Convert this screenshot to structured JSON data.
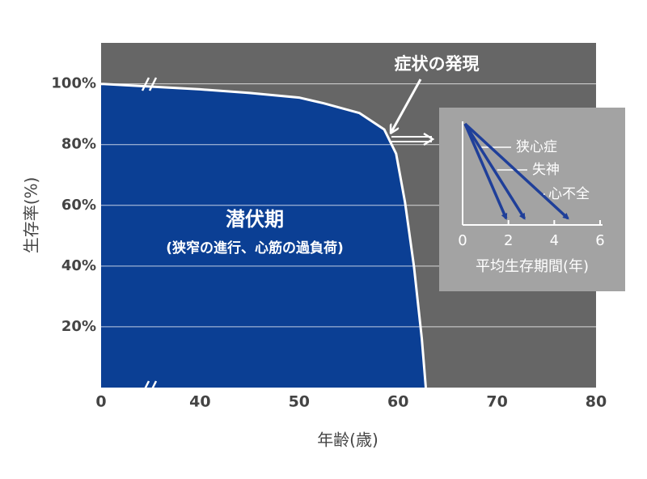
{
  "chart_data": [
    {
      "type": "line",
      "x_label": "年齢(歳)",
      "y_label": "生存率(%)",
      "x_origin_label": "0",
      "x": [
        30,
        40,
        45,
        50,
        52.5,
        56.1,
        58.6,
        59.8,
        60.7,
        61.6,
        62.4,
        62.8
      ],
      "values": [
        100,
        98.2,
        97,
        95.5,
        93.6,
        90.4,
        85,
        77,
        61,
        40,
        16,
        0
      ],
      "color": "#0b3f94",
      "xlim": [
        30,
        80
      ],
      "xticks": [
        40,
        50,
        60,
        70,
        80
      ],
      "ylim": [
        0,
        113.5
      ],
      "yticks": [
        {
          "value": 20,
          "label": "20%"
        },
        {
          "value": 40,
          "label": "40%"
        },
        {
          "value": 60,
          "label": "60%"
        },
        {
          "value": 80,
          "label": "80%"
        },
        {
          "value": 100,
          "label": "100%"
        }
      ],
      "grid": true,
      "annotations": [
        "潜伏期",
        "(狭窄の進行、心筋の過負荷)",
        "症状の発現"
      ]
    },
    {
      "type": "arrow",
      "x_label": "平均生存期間(年)",
      "categories": [
        "狭心症",
        "失神",
        "心不全"
      ],
      "values": [
        1.9,
        2.7,
        4.6
      ],
      "color": "#1f3f99",
      "xlim": [
        0,
        6
      ],
      "xticks": [
        0,
        2,
        4,
        6
      ]
    }
  ]
}
